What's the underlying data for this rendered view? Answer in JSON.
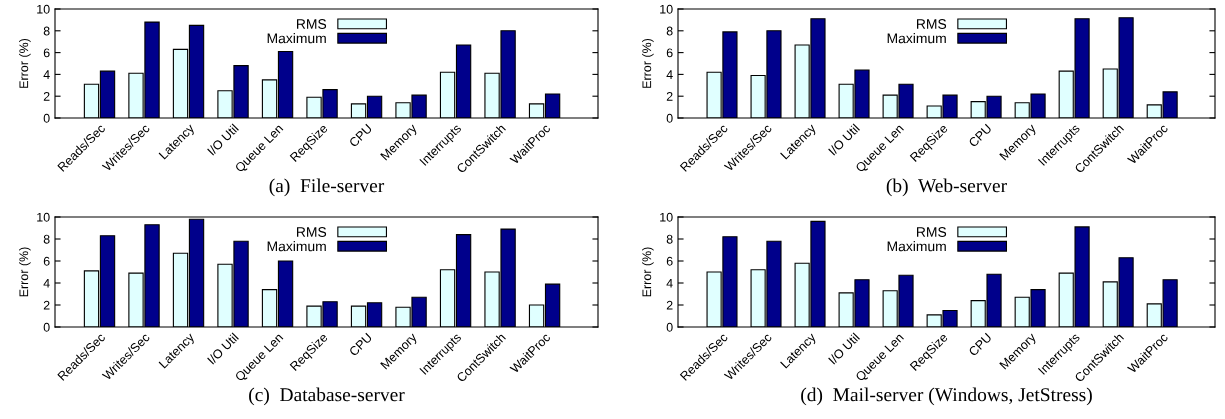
{
  "chart_data": [
    {
      "type": "bar",
      "xlabel": "(a)  File-server",
      "ylabel": "Error (%)",
      "categories": [
        "Reads/Sec",
        "Writes/Sec",
        "Latency",
        "I/O Util",
        "Queue Len",
        "ReqSize",
        "CPU",
        "Memory",
        "Interrupts",
        "ContSwitch",
        "WaitProc"
      ],
      "series": [
        {
          "name": "RMS",
          "color": "#e0ffff",
          "values": [
            3.1,
            4.1,
            6.3,
            2.5,
            3.5,
            1.9,
            1.3,
            1.4,
            4.2,
            4.1,
            1.3
          ]
        },
        {
          "name": "Maximum",
          "color": "#00008b",
          "values": [
            4.3,
            8.8,
            8.5,
            4.8,
            6.1,
            2.6,
            2.0,
            2.1,
            6.7,
            8.0,
            2.2
          ]
        }
      ],
      "ylim": [
        0,
        10
      ],
      "yticks": [
        0,
        2,
        4,
        6,
        8,
        10
      ],
      "legend": "top",
      "grid": false
    },
    {
      "type": "bar",
      "xlabel": "(b)  Web-server",
      "ylabel": "Error (%)",
      "categories": [
        "Reads/Sec",
        "Writes/Sec",
        "Latency",
        "I/O Util",
        "Queue Len",
        "ReqSize",
        "CPU",
        "Memory",
        "Interrupts",
        "ContSwitch",
        "WaitProc"
      ],
      "series": [
        {
          "name": "RMS",
          "color": "#e0ffff",
          "values": [
            4.2,
            3.9,
            6.7,
            3.1,
            2.1,
            1.1,
            1.5,
            1.4,
            4.3,
            4.5,
            1.2
          ]
        },
        {
          "name": "Maximum",
          "color": "#00008b",
          "values": [
            7.9,
            8.0,
            9.1,
            4.4,
            3.1,
            2.1,
            2.0,
            2.2,
            9.1,
            9.2,
            2.4
          ]
        }
      ],
      "ylim": [
        0,
        10
      ],
      "yticks": [
        0,
        2,
        4,
        6,
        8,
        10
      ],
      "legend": "top",
      "grid": false
    },
    {
      "type": "bar",
      "xlabel": "(c)  Database-server",
      "ylabel": "Error (%)",
      "categories": [
        "Reads/Sec",
        "Writes/Sec",
        "Latency",
        "I/O Util",
        "Queue Len",
        "ReqSize",
        "CPU",
        "Memory",
        "Interrupts",
        "ContSwitch",
        "WaitProc"
      ],
      "series": [
        {
          "name": "RMS",
          "color": "#e0ffff",
          "values": [
            5.1,
            4.9,
            6.7,
            5.7,
            3.4,
            1.9,
            1.9,
            1.8,
            5.2,
            5.0,
            2.0
          ]
        },
        {
          "name": "Maximum",
          "color": "#00008b",
          "values": [
            8.3,
            9.3,
            9.8,
            7.8,
            6.0,
            2.3,
            2.2,
            2.7,
            8.4,
            8.9,
            3.9
          ]
        }
      ],
      "ylim": [
        0,
        10
      ],
      "yticks": [
        0,
        2,
        4,
        6,
        8,
        10
      ],
      "legend": "top",
      "grid": false
    },
    {
      "type": "bar",
      "xlabel": "(d)  Mail-server (Windows, JetStress)",
      "ylabel": "Error (%)",
      "categories": [
        "Reads/Sec",
        "Writes/Sec",
        "Latency",
        "I/O Util",
        "Queue Len",
        "ReqSize",
        "CPU",
        "Memory",
        "Interrupts",
        "ContSwitch",
        "WaitProc"
      ],
      "series": [
        {
          "name": "RMS",
          "color": "#e0ffff",
          "values": [
            5.0,
            5.2,
            5.8,
            3.1,
            3.3,
            1.1,
            2.4,
            2.7,
            4.9,
            4.1,
            2.1
          ]
        },
        {
          "name": "Maximum",
          "color": "#00008b",
          "values": [
            8.2,
            7.8,
            9.6,
            4.3,
            4.7,
            1.5,
            4.8,
            3.4,
            9.1,
            6.3,
            4.3
          ]
        }
      ],
      "ylim": [
        0,
        10
      ],
      "yticks": [
        0,
        2,
        4,
        6,
        8,
        10
      ],
      "legend": "top",
      "grid": false
    }
  ]
}
